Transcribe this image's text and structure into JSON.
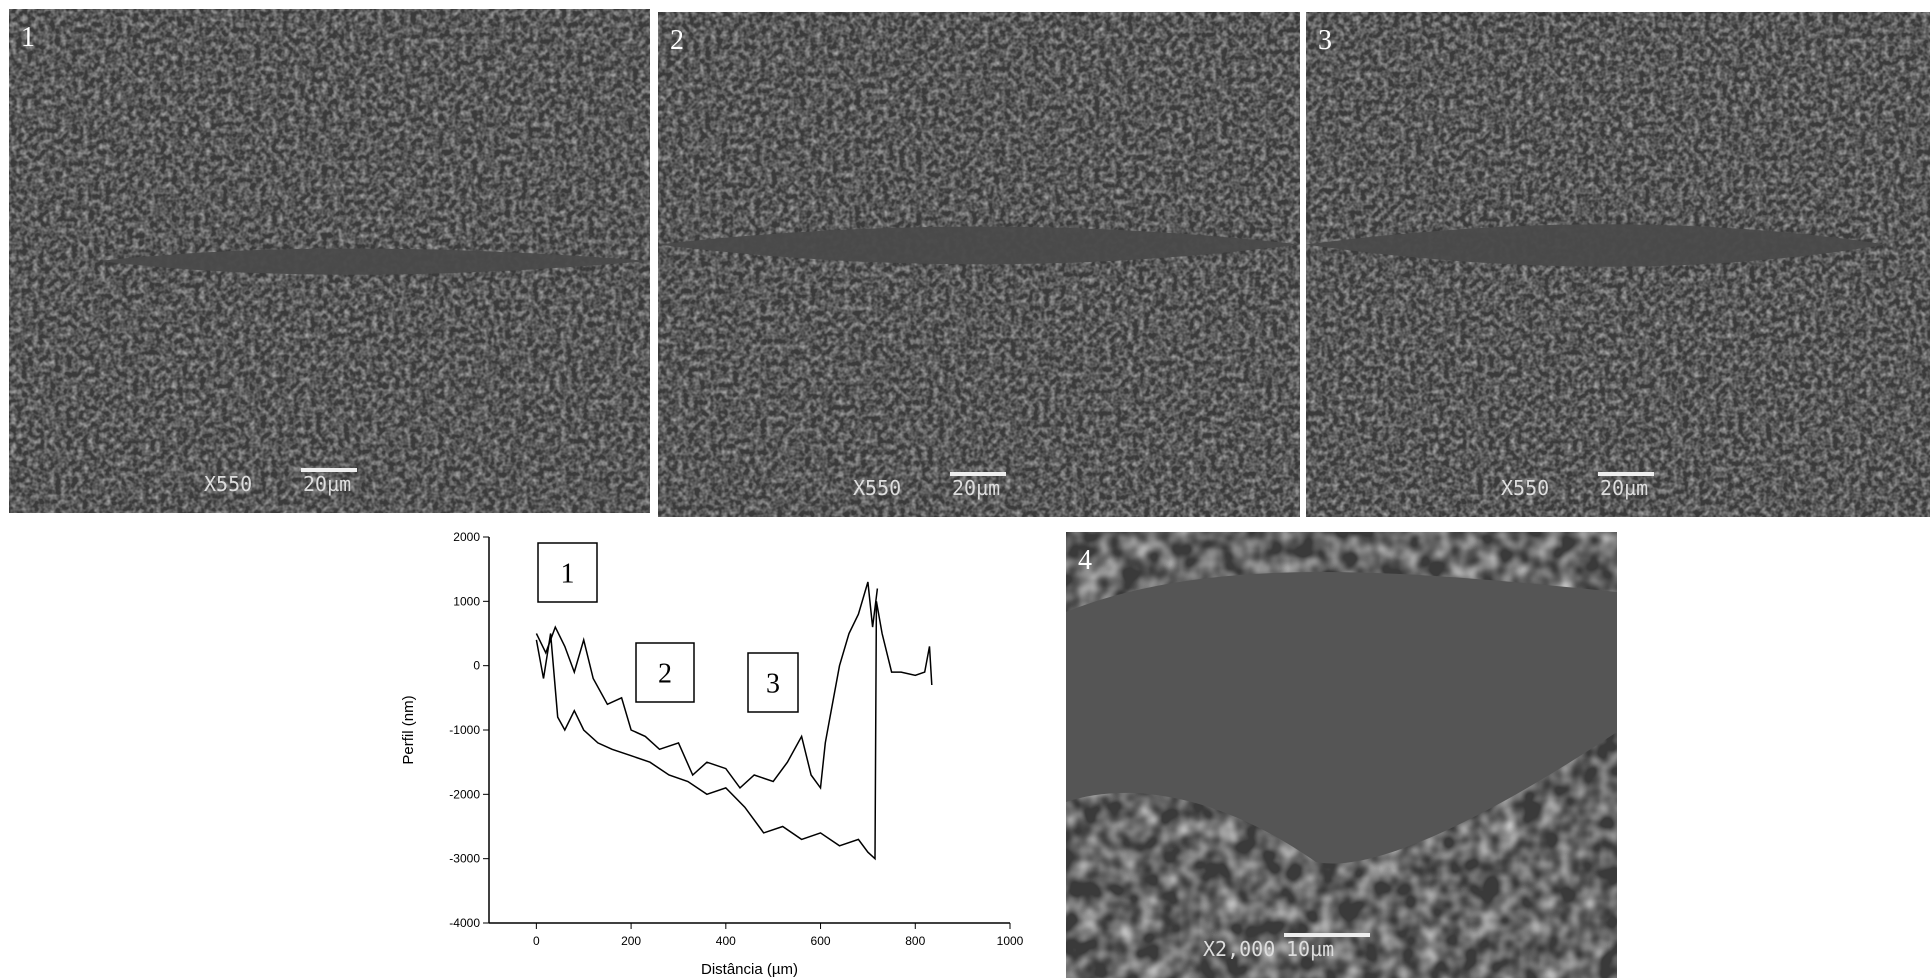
{
  "panels": [
    {
      "label": "1",
      "magnification": "X550",
      "scale": "20µm"
    },
    {
      "label": "2",
      "magnification": "X550",
      "scale": "20µm"
    },
    {
      "label": "3",
      "magnification": "X550",
      "scale": "20µm"
    },
    {
      "label": "4",
      "magnification": "X2,000",
      "scale": "10µm"
    }
  ],
  "chart_data": {
    "type": "line",
    "x_label": "Distância (µm)",
    "y_label": "Perfil (nm)",
    "annotations": [
      "1",
      "2",
      "3"
    ],
    "xlim": [
      -100,
      1000
    ],
    "xticks": [
      0,
      200,
      400,
      600,
      800,
      1000
    ],
    "ylim": [
      -4000,
      2000
    ],
    "yticks": [
      -4000,
      -3000,
      -2000,
      -1000,
      0,
      1000,
      2000
    ],
    "series": [
      {
        "color": "#000000",
        "x": [
          0,
          15,
          30,
          45,
          60,
          80,
          100,
          130,
          160,
          200,
          240,
          280,
          320,
          360,
          400,
          440,
          480,
          520,
          560,
          600,
          640,
          680,
          700,
          715,
          718,
          730,
          750,
          770,
          800,
          820,
          830,
          835
        ],
        "values": [
          400,
          -200,
          500,
          -800,
          -1000,
          -700,
          -1000,
          -1200,
          -1300,
          -1400,
          -1500,
          -1700,
          -1800,
          -2000,
          -1900,
          -2200,
          -2600,
          -2500,
          -2700,
          -2600,
          -2800,
          -2700,
          -2900,
          -3000,
          1000,
          500,
          -100,
          -100,
          -150,
          -100,
          300,
          -300
        ]
      },
      {
        "color": "#000000",
        "x": [
          0,
          20,
          40,
          60,
          80,
          100,
          120,
          150,
          180,
          200,
          230,
          260,
          300,
          330,
          360,
          400,
          430,
          460,
          500,
          530,
          560,
          580,
          600,
          610,
          620,
          640,
          660,
          680,
          700,
          710,
          720
        ],
        "values": [
          500,
          200,
          600,
          300,
          -100,
          400,
          -200,
          -600,
          -500,
          -1000,
          -1100,
          -1300,
          -1200,
          -1700,
          -1500,
          -1600,
          -1900,
          -1700,
          -1800,
          -1500,
          -1100,
          -1700,
          -1900,
          -1200,
          -800,
          0,
          500,
          800,
          1300,
          600,
          1200
        ]
      }
    ]
  }
}
